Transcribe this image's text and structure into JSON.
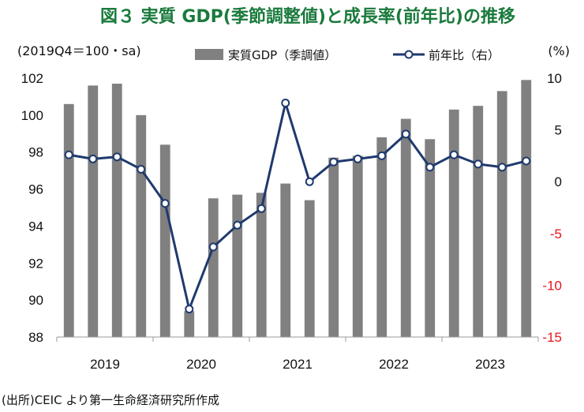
{
  "chart_data": {
    "type": "bar+line",
    "title": "図３ 実質 GDP(季節調整値)と成長率(前年比)の推移",
    "left_axis_unit": "(2019Q4＝100・sa)",
    "right_axis_unit": "(%)",
    "source": "(出所)CEIC より第一生命経済研究所作成",
    "categories": [
      "2019Q1",
      "2019Q2",
      "2019Q3",
      "2019Q4",
      "2020Q1",
      "2020Q2",
      "2020Q3",
      "2020Q4",
      "2021Q1",
      "2021Q2",
      "2021Q3",
      "2021Q4",
      "2022Q1",
      "2022Q2",
      "2022Q3",
      "2022Q4",
      "2023Q1",
      "2023Q2",
      "2023Q3",
      "2023Q4"
    ],
    "x_tick_labels": [
      "2019",
      "2020",
      "2021",
      "2022",
      "2023"
    ],
    "left_axis": {
      "ylim": [
        88,
        102
      ],
      "ticks": [
        88,
        90,
        92,
        94,
        96,
        98,
        100,
        102
      ],
      "color": "#111111"
    },
    "right_axis": {
      "ylim": [
        -15,
        10
      ],
      "ticks": [
        -15,
        -10,
        -5,
        0,
        5,
        10
      ],
      "tick_labels": [
        "-15",
        "-10",
        "-5",
        "0",
        "5",
        "10"
      ],
      "negative_color": "#e8141b",
      "positive_color": "#111111"
    },
    "series": [
      {
        "name": "実質GDP（季調値）",
        "type": "bar",
        "axis": "left",
        "color": "#808080",
        "values": [
          100.6,
          101.6,
          101.7,
          100.0,
          98.4,
          89.4,
          95.5,
          95.7,
          95.8,
          96.3,
          95.4,
          97.7,
          97.8,
          98.8,
          99.8,
          98.7,
          100.3,
          100.5,
          101.3,
          101.9
        ]
      },
      {
        "name": "前年比（右）",
        "type": "line",
        "axis": "right",
        "color": "#1f3a6e",
        "values": [
          2.6,
          2.2,
          2.4,
          1.2,
          -2.1,
          -12.3,
          -6.3,
          -4.2,
          -2.6,
          7.6,
          0.0,
          1.9,
          2.2,
          2.5,
          4.6,
          1.4,
          2.6,
          1.7,
          1.4,
          2.0
        ]
      }
    ],
    "legend_position": "top"
  }
}
